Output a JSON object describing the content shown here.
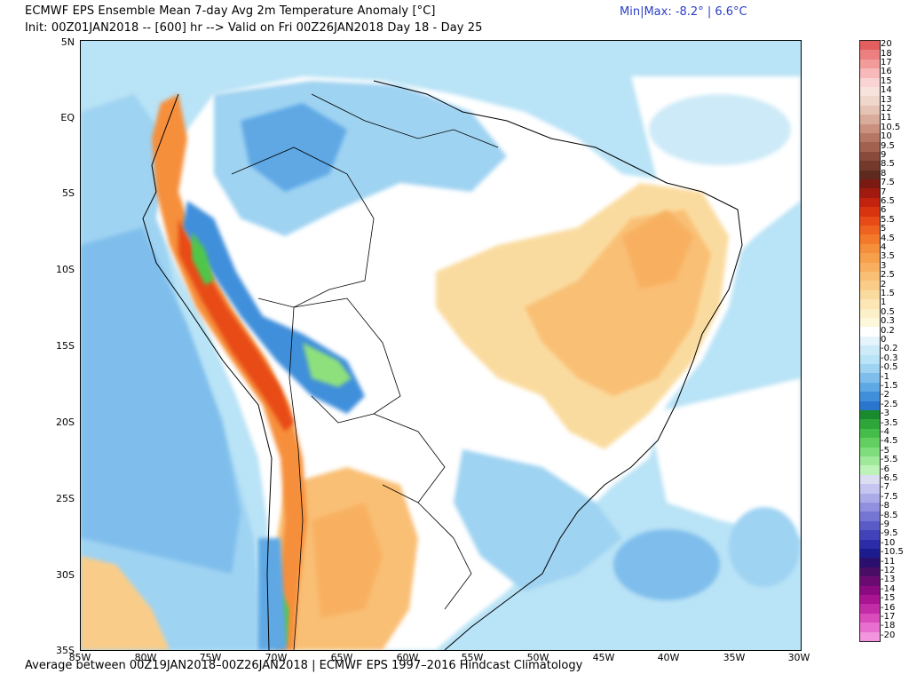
{
  "header": {
    "title_line1": "ECMWF EPS Ensemble Mean 7-day Avg 2m Temperature Anomaly [°C]",
    "title_line2": "Init: 00Z01JAN2018 -- [600] hr --> Valid on Fri 00Z26JAN2018  Day 18 - Day 25",
    "minmax": "Min|Max: -8.2° | 6.6°C"
  },
  "footer": {
    "text": "Average between 00Z19JAN2018–00Z26JAN2018 | ECMWF EPS 1997–2016 Hindcast Climatology"
  },
  "map": {
    "lat_labels": [
      "5N",
      "EQ",
      "5S",
      "10S",
      "15S",
      "20S",
      "25S",
      "30S",
      "35S"
    ],
    "lon_labels": [
      "85W",
      "80W",
      "75W",
      "70W",
      "65W",
      "60W",
      "55W",
      "50W",
      "45W",
      "40W",
      "35W",
      "30W"
    ],
    "extent": {
      "lon_min": -85,
      "lon_max": -30,
      "lat_min": -35,
      "lat_max": 5
    },
    "colors": {
      "ocean_light_blue": "#b9e3f6",
      "medium_blue": "#6fb2e7",
      "dark_blue": "#3f7fd6",
      "green": "#4fc64a",
      "light_green": "#8ee07d",
      "pale_yellow": "#f6efae",
      "orange": "#f5b37a",
      "dark_orange": "#ec7e4e",
      "red": "#d94a2b"
    }
  },
  "colorbar": {
    "labels": [
      "20",
      "18",
      "17",
      "16",
      "15",
      "14",
      "13",
      "12",
      "11",
      "10.5",
      "10",
      "9.5",
      "9",
      "8.5",
      "8",
      "7.5",
      "7",
      "6.5",
      "6",
      "5.5",
      "5",
      "4.5",
      "4",
      "3.5",
      "3",
      "2.5",
      "2",
      "1.5",
      "1",
      "0.5",
      "0.3",
      "0.2",
      "0",
      "-0.2",
      "-0.3",
      "-0.5",
      "-1",
      "-1.5",
      "-2",
      "-2.5",
      "-3",
      "-3.5",
      "-4",
      "-4.5",
      "-5",
      "-5.5",
      "-6",
      "-6.5",
      "-7",
      "-7.5",
      "-8",
      "-8.5",
      "-9",
      "-9.5",
      "-10",
      "-10.5",
      "-11",
      "-12",
      "-13",
      "-14",
      "-15",
      "-16",
      "-17",
      "-18",
      "-20"
    ],
    "colors": [
      "#e35e5e",
      "#ec7f7f",
      "#f29b9b",
      "#f7b9b9",
      "#fad4d4",
      "#f7e2dc",
      "#efd7cc",
      "#e5c4b5",
      "#d8ab9a",
      "#c9917e",
      "#b67764",
      "#a2604f",
      "#8a4a3b",
      "#75392c",
      "#5e2a1f",
      "#7a1a12",
      "#a01a10",
      "#c2220e",
      "#d93410",
      "#e84b18",
      "#f0621f",
      "#f47a2b",
      "#f68f3b",
      "#f7a04c",
      "#f8b060",
      "#f9bf74",
      "#f9cd89",
      "#fadb9f",
      "#fbe6b4",
      "#fcf0c8",
      "#fdf7dc",
      "#ffffff",
      "#e6f4fb",
      "#cdeaf8",
      "#b9e3f6",
      "#9fd3f2",
      "#7fbeec",
      "#5ea8e4",
      "#3f8fdb",
      "#2a76cf",
      "#1a8a2e",
      "#2fa63a",
      "#46bd4a",
      "#63cf62",
      "#80dd7d",
      "#9ee99a",
      "#bdf2b9",
      "#dcdcf3",
      "#c5c5ef",
      "#ababe8",
      "#9090df",
      "#7575d4",
      "#5b5bc8",
      "#4242ba",
      "#2c2ca8",
      "#1c1c8f",
      "#2a0f6e",
      "#4a0d66",
      "#6b0b72",
      "#8c0a80",
      "#a81492",
      "#c22ca7",
      "#d84cbc",
      "#e86fcf",
      "#f396df"
    ]
  }
}
